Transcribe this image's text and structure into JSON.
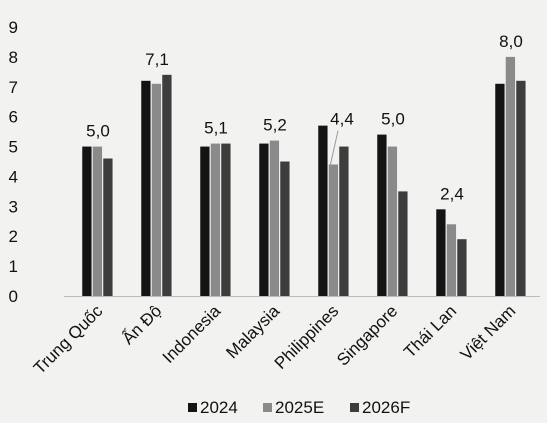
{
  "chart_data": {
    "type": "bar",
    "categories": [
      "Trung Quốc",
      "Ấn Độ",
      "Indonesia",
      "Malaysia",
      "Philippines",
      "Singapore",
      "Thái Lan",
      "Việt Nam"
    ],
    "series": [
      {
        "name": "2024",
        "color": "#141414",
        "values": [
          5.0,
          7.2,
          5.0,
          5.1,
          5.7,
          5.4,
          2.9,
          7.1
        ]
      },
      {
        "name": "2025E",
        "color": "#8a8a8a",
        "values": [
          5.0,
          7.1,
          5.1,
          5.2,
          4.4,
          5.0,
          2.4,
          8.0
        ]
      },
      {
        "name": "2026F",
        "color": "#3d3d3d",
        "values": [
          4.6,
          7.4,
          5.1,
          4.5,
          5.0,
          3.5,
          1.9,
          7.2
        ]
      }
    ],
    "data_labels": [
      "5,0",
      "7,1",
      "5,1",
      "5,2",
      "4,4",
      "5,0",
      "2,4",
      "8,0"
    ],
    "y_ticks": [
      "0",
      "1",
      "2",
      "3",
      "4",
      "5",
      "6",
      "7",
      "8",
      "9"
    ],
    "ylim": [
      0,
      9
    ],
    "grid": false,
    "legend_position": "bottom"
  }
}
